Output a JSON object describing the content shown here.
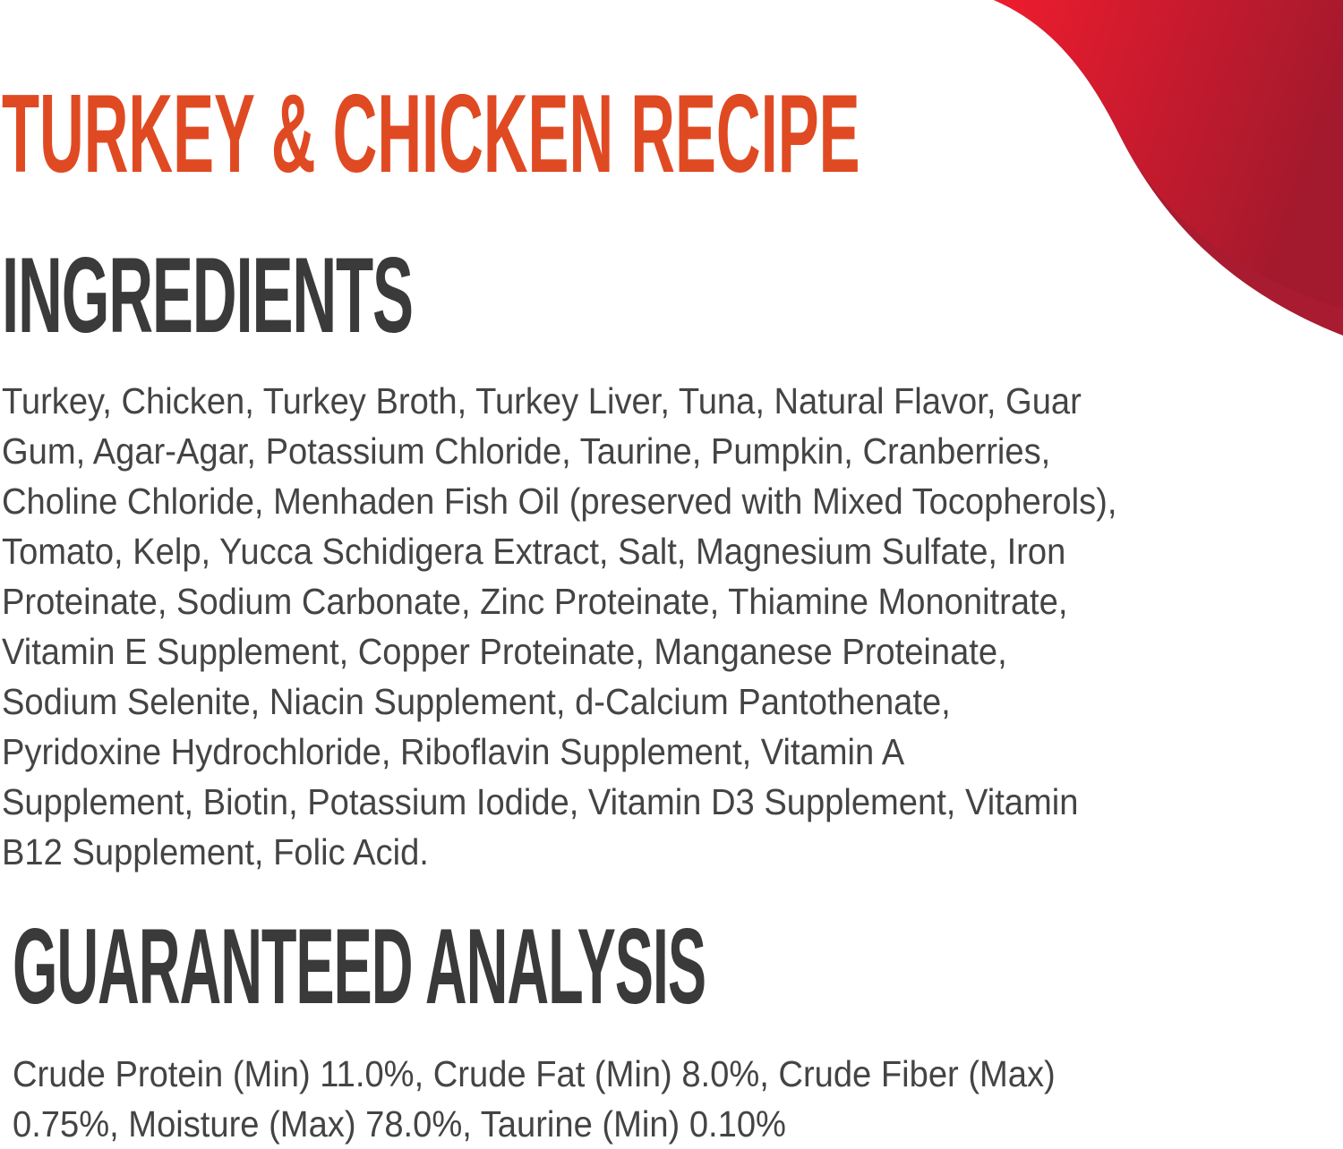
{
  "colors": {
    "title": "#e04a23",
    "heading": "#3a3a3a",
    "body": "#444444",
    "swoosh": "#e31b2d",
    "swoosh_dark": "#a3192d"
  },
  "title": "TURKEY & CHICKEN RECIPE",
  "ingredients": {
    "heading": "INGREDIENTS",
    "lines": [
      "Turkey, Chicken, Turkey Broth, Turkey Liver, Tuna, Natural Flavor, Guar",
      "Gum, Agar-Agar, Potassium Chloride, Taurine, Pumpkin, Cranberries,",
      "Choline Chloride, Menhaden Fish Oil (preserved with Mixed Tocopherols),",
      "Tomato, Kelp, Yucca Schidigera Extract, Salt, Magnesium Sulfate, Iron",
      "Proteinate, Sodium Carbonate, Zinc Proteinate, Thiamine Mononitrate,",
      "Vitamin E Supplement, Copper Proteinate, Manganese Proteinate,",
      "Sodium Selenite, Niacin Supplement, d-Calcium Pantothenate,",
      "Pyridoxine Hydrochloride, Riboflavin Supplement, Vitamin A",
      "Supplement, Biotin, Potassium Iodide, Vitamin D3 Supplement, Vitamin",
      "B12 Supplement, Folic Acid."
    ]
  },
  "analysis": {
    "heading": "GUARANTEED ANALYSIS",
    "lines": [
      "Crude Protein (Min) 11.0%, Crude Fat (Min) 8.0%, Crude Fiber (Max)",
      "0.75%, Moisture (Max) 78.0%, Taurine (Min) 0.10%"
    ]
  }
}
